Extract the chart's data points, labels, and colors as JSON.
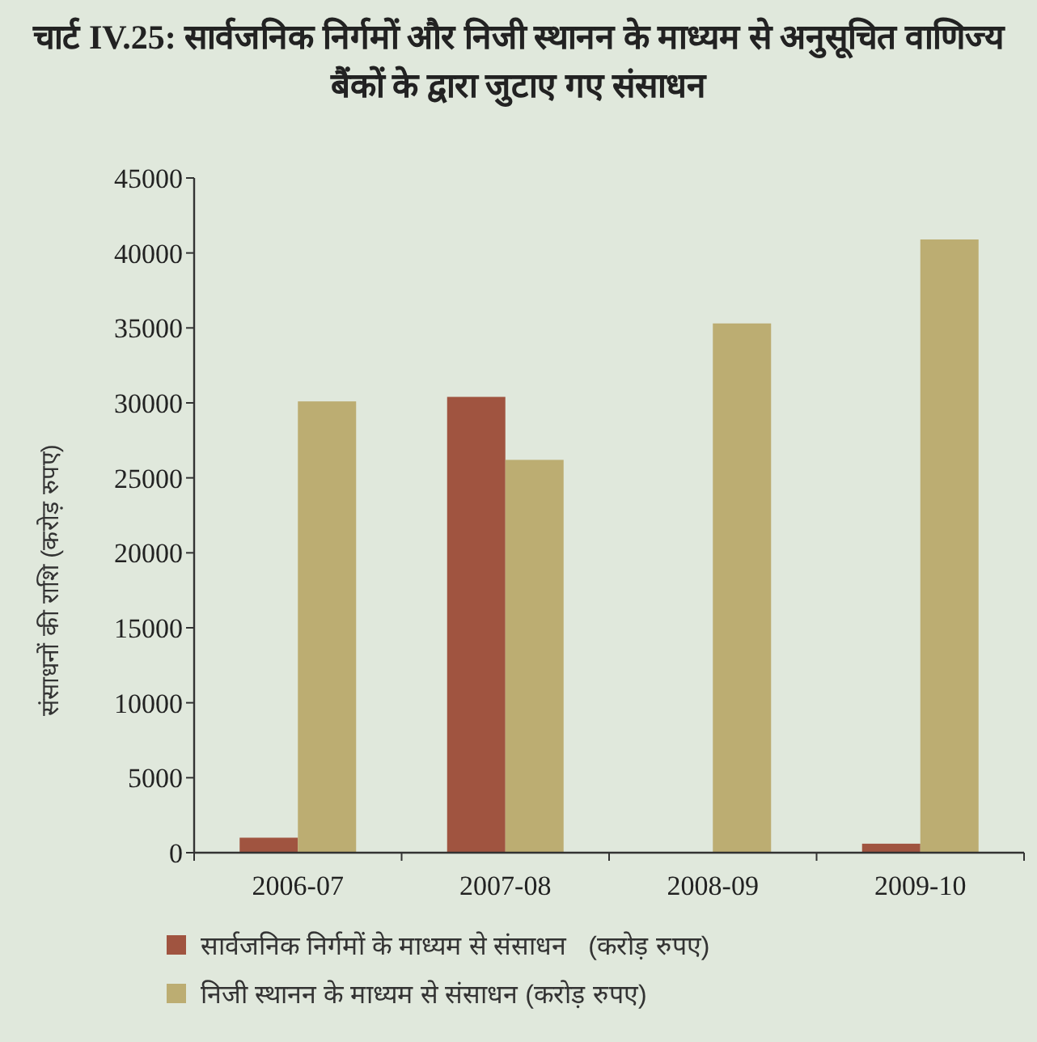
{
  "chart_data": {
    "type": "bar",
    "title": "चार्ट IV.25: सार्वजनिक निर्गमों और निजी स्थानन के माध्यम से अनुसूचित वाणिज्य बैंकों के द्वारा जुटाए गए संसाधन",
    "ylabel": "संसाधनों की राशि (करोड़ रुपए)",
    "categories": [
      "2006-07",
      "2007-08",
      "2008-09",
      "2009-10"
    ],
    "series": [
      {
        "name": "सार्वजनिक निर्गमों के माध्यम से संसाधन   (करोड़ रुपए)",
        "color": "#a05440",
        "values": [
          1000,
          30400,
          null,
          600
        ]
      },
      {
        "name": "निजी स्थानन के माध्यम से संसाधन (करोड़ रुपए)",
        "color": "#bcad72",
        "values": [
          30100,
          26200,
          35300,
          40900
        ]
      }
    ],
    "ylim": [
      0,
      45000
    ],
    "yticks": [
      0,
      5000,
      10000,
      15000,
      20000,
      25000,
      30000,
      35000,
      40000,
      45000
    ],
    "grid": false,
    "legend": "bottom"
  }
}
